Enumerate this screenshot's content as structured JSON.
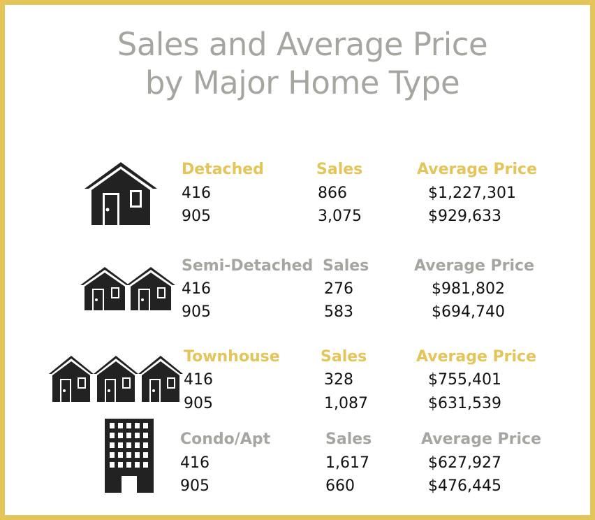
{
  "title": {
    "line1": "Sales and Average Price",
    "line2": "by Major Home Type"
  },
  "colors": {
    "border": "#e3c55a",
    "gold_heading": "#e3c55a",
    "grey_heading": "#a6a6a1",
    "icon": "#222222"
  },
  "sections": [
    {
      "icon": "house-icon",
      "type_label": "Detached",
      "sales_label": "Sales",
      "price_label": "Average Price",
      "rows": [
        {
          "region": "416",
          "sales": "866",
          "price": "$1,227,301"
        },
        {
          "region": "905",
          "sales": "3,075",
          "price": "$929,633"
        }
      ]
    },
    {
      "icon": "semi-detached-icon",
      "type_label": "Semi-Detached",
      "sales_label": "Sales",
      "price_label": "Average Price",
      "rows": [
        {
          "region": "416",
          "sales": "276",
          "price": "$981,802"
        },
        {
          "region": "905",
          "sales": "583",
          "price": "$694,740"
        }
      ]
    },
    {
      "icon": "townhouse-icon",
      "type_label": "Townhouse",
      "sales_label": "Sales",
      "price_label": "Average Price",
      "rows": [
        {
          "region": "416",
          "sales": "328",
          "price": "$755,401"
        },
        {
          "region": "905",
          "sales": "1,087",
          "price": "$631,539"
        }
      ]
    },
    {
      "icon": "condo-building-icon",
      "type_label": "Condo/Apt",
      "sales_label": "Sales",
      "price_label": "Average Price",
      "rows": [
        {
          "region": "416",
          "sales": "1,617",
          "price": "$627,927"
        },
        {
          "region": "905",
          "sales": "660",
          "price": "$476,445"
        }
      ]
    }
  ]
}
